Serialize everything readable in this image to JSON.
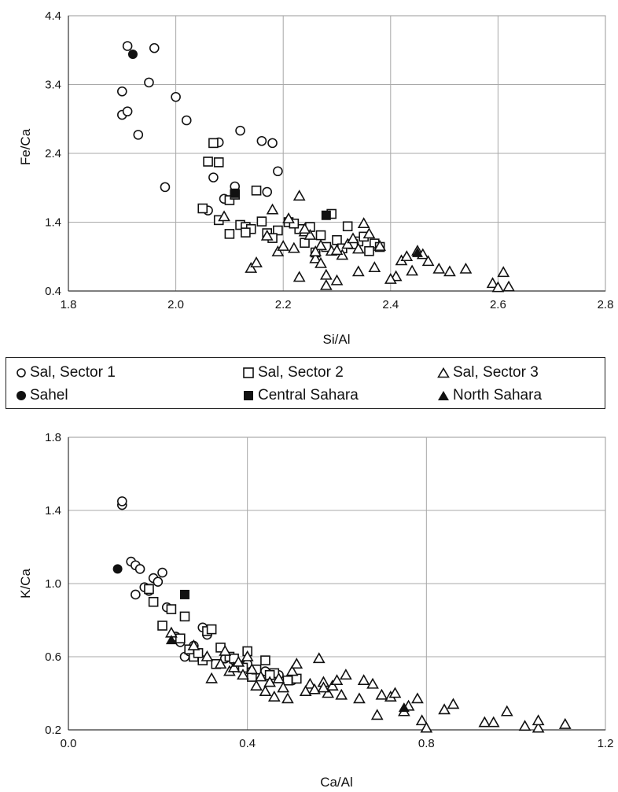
{
  "legend": [
    {
      "label": "Sal, Sector 1",
      "marker": "circle-open"
    },
    {
      "label": "Sal, Sector 2",
      "marker": "square-open"
    },
    {
      "label": "Sal, Sector 3",
      "marker": "triangle-open"
    },
    {
      "label": "Sahel",
      "marker": "circle-filled"
    },
    {
      "label": "Central Sahara",
      "marker": "square-filled"
    },
    {
      "label": "North Sahara",
      "marker": "triangle-filled"
    }
  ],
  "chart_data": [
    {
      "type": "scatter",
      "title": "",
      "xlabel": "Si/Al",
      "ylabel": "Fe/Ca",
      "xlim": [
        1.8,
        2.8
      ],
      "ylim": [
        0.4,
        4.4
      ],
      "xticks": [
        "1.8",
        "2.0",
        "2.2",
        "2.4",
        "2.6",
        "2.8"
      ],
      "yticks": [
        "0.4",
        "1.4",
        "2.4",
        "3.4",
        "4.4"
      ],
      "grid": true,
      "series": [
        {
          "name": "Sal, Sector 1",
          "marker": "circle-open",
          "x": [
            1.91,
            1.96,
            1.9,
            1.95,
            1.9,
            1.91,
            1.93,
            2.0,
            2.02,
            2.08,
            2.12,
            2.16,
            2.18,
            2.19,
            1.98,
            2.07,
            2.11,
            2.09,
            2.06,
            2.17
          ],
          "y": [
            3.96,
            3.93,
            3.3,
            3.43,
            2.96,
            3.01,
            2.67,
            3.22,
            2.88,
            2.56,
            2.73,
            2.58,
            2.55,
            2.14,
            1.91,
            2.05,
            1.92,
            1.74,
            1.57,
            1.84
          ]
        },
        {
          "name": "Sal, Sector 2",
          "marker": "square-open",
          "x": [
            2.06,
            2.08,
            2.05,
            2.07,
            2.1,
            2.11,
            2.12,
            2.13,
            2.14,
            2.15,
            2.16,
            2.17,
            2.19,
            2.21,
            2.23,
            2.25,
            2.27,
            2.29,
            2.3,
            2.32,
            2.34,
            2.35,
            2.37,
            2.38,
            2.1,
            2.13,
            2.18,
            2.24,
            2.28,
            2.33,
            2.36,
            2.08,
            2.22,
            2.26,
            2.31
          ],
          "y": [
            2.28,
            2.27,
            1.6,
            2.55,
            1.72,
            1.8,
            1.36,
            1.33,
            1.3,
            1.86,
            1.41,
            1.24,
            1.28,
            1.4,
            1.3,
            1.33,
            1.21,
            1.52,
            1.14,
            1.34,
            1.12,
            1.19,
            1.09,
            1.04,
            1.23,
            1.25,
            1.17,
            1.1,
            1.04,
            1.08,
            0.98,
            1.43,
            1.38,
            0.96,
            1.02
          ]
        },
        {
          "name": "Sal, Sector 3",
          "marker": "triangle-open",
          "x": [
            2.09,
            2.14,
            2.15,
            2.17,
            2.18,
            2.19,
            2.2,
            2.21,
            2.22,
            2.23,
            2.24,
            2.25,
            2.26,
            2.27,
            2.28,
            2.29,
            2.3,
            2.31,
            2.32,
            2.33,
            2.34,
            2.35,
            2.36,
            2.37,
            2.38,
            2.41,
            2.42,
            2.43,
            2.44,
            2.45,
            2.46,
            2.47,
            2.49,
            2.51,
            2.54,
            2.59,
            2.6,
            2.61,
            2.62,
            2.23,
            2.26,
            2.28,
            2.3,
            2.34,
            2.4,
            2.27,
            2.24
          ],
          "y": [
            1.48,
            0.73,
            0.81,
            1.2,
            1.58,
            0.97,
            1.05,
            1.45,
            1.02,
            1.78,
            1.26,
            1.21,
            0.87,
            1.06,
            0.63,
            0.98,
            0.55,
            0.92,
            1.08,
            1.16,
            0.68,
            1.38,
            1.23,
            0.74,
            1.05,
            0.61,
            0.84,
            0.9,
            0.69,
            0.98,
            0.93,
            0.83,
            0.72,
            0.68,
            0.72,
            0.51,
            0.45,
            0.67,
            0.46,
            0.6,
            0.97,
            0.48,
            0.99,
            1.01,
            0.57,
            0.8,
            1.3
          ]
        },
        {
          "name": "Sahel",
          "marker": "circle-filled",
          "x": [
            1.92
          ],
          "y": [
            3.84
          ]
        },
        {
          "name": "Central Sahara",
          "marker": "square-filled",
          "x": [
            2.11,
            2.28
          ],
          "y": [
            1.82,
            1.5
          ]
        },
        {
          "name": "North Sahara",
          "marker": "triangle-filled",
          "x": [
            2.45
          ],
          "y": [
            0.95
          ]
        }
      ]
    },
    {
      "type": "scatter",
      "title": "",
      "xlabel": "Ca/Al",
      "ylabel": "K/Ca",
      "xlim": [
        0.0,
        1.2
      ],
      "ylim": [
        0.2,
        1.8
      ],
      "xticks": [
        "0.0",
        "0.4",
        "0.8",
        "1.2"
      ],
      "yticks": [
        "0.2",
        "0.6",
        "1.0",
        "1.4",
        "1.8"
      ],
      "grid": true,
      "series": [
        {
          "name": "Sal, Sector 1",
          "marker": "circle-open",
          "x": [
            0.12,
            0.12,
            0.14,
            0.15,
            0.16,
            0.17,
            0.18,
            0.19,
            0.2,
            0.21,
            0.15,
            0.22,
            0.25,
            0.26,
            0.28,
            0.3,
            0.31,
            0.27,
            0.24,
            0.35,
            0.37,
            0.4,
            0.44,
            0.47,
            0.5
          ],
          "y": [
            1.43,
            1.45,
            1.12,
            1.1,
            1.08,
            0.98,
            0.96,
            1.03,
            1.01,
            1.06,
            0.94,
            0.87,
            0.68,
            0.6,
            0.66,
            0.76,
            0.72,
            0.63,
            0.71,
            0.59,
            0.58,
            0.56,
            0.52,
            0.5,
            0.47
          ]
        },
        {
          "name": "Sal, Sector 2",
          "marker": "square-open",
          "x": [
            0.18,
            0.19,
            0.21,
            0.23,
            0.25,
            0.26,
            0.28,
            0.3,
            0.31,
            0.32,
            0.34,
            0.36,
            0.38,
            0.4,
            0.41,
            0.42,
            0.44,
            0.46,
            0.49,
            0.51,
            0.29,
            0.33,
            0.37,
            0.39,
            0.45,
            0.27
          ],
          "y": [
            0.97,
            0.9,
            0.77,
            0.86,
            0.7,
            0.82,
            0.6,
            0.58,
            0.74,
            0.75,
            0.65,
            0.6,
            0.55,
            0.63,
            0.49,
            0.53,
            0.58,
            0.51,
            0.47,
            0.48,
            0.62,
            0.56,
            0.59,
            0.54,
            0.5,
            0.64
          ]
        },
        {
          "name": "Sal, Sector 3",
          "marker": "triangle-open",
          "x": [
            0.23,
            0.28,
            0.31,
            0.32,
            0.34,
            0.35,
            0.36,
            0.37,
            0.38,
            0.39,
            0.4,
            0.41,
            0.42,
            0.43,
            0.44,
            0.45,
            0.46,
            0.47,
            0.48,
            0.49,
            0.5,
            0.51,
            0.54,
            0.55,
            0.56,
            0.57,
            0.58,
            0.59,
            0.6,
            0.61,
            0.62,
            0.65,
            0.68,
            0.69,
            0.72,
            0.73,
            0.75,
            0.76,
            0.78,
            0.79,
            0.8,
            0.84,
            0.86,
            0.93,
            0.95,
            0.98,
            1.02,
            1.05,
            1.05,
            1.11,
            0.7,
            0.66,
            0.53,
            0.57
          ],
          "y": [
            0.73,
            0.66,
            0.6,
            0.48,
            0.56,
            0.63,
            0.52,
            0.54,
            0.57,
            0.5,
            0.6,
            0.53,
            0.44,
            0.49,
            0.41,
            0.46,
            0.38,
            0.48,
            0.43,
            0.37,
            0.52,
            0.56,
            0.45,
            0.42,
            0.59,
            0.46,
            0.4,
            0.44,
            0.47,
            0.39,
            0.5,
            0.37,
            0.45,
            0.28,
            0.38,
            0.4,
            0.3,
            0.33,
            0.37,
            0.25,
            0.21,
            0.31,
            0.34,
            0.24,
            0.24,
            0.3,
            0.22,
            0.21,
            0.25,
            0.23,
            0.39,
            0.47,
            0.41,
            0.43
          ]
        },
        {
          "name": "Sahel",
          "marker": "circle-filled",
          "x": [
            0.11
          ],
          "y": [
            1.08
          ]
        },
        {
          "name": "Central Sahara",
          "marker": "square-filled",
          "x": [
            0.26
          ],
          "y": [
            0.94
          ]
        },
        {
          "name": "North Sahara",
          "marker": "triangle-filled",
          "x": [
            0.23,
            0.75
          ],
          "y": [
            0.69,
            0.32
          ]
        }
      ]
    }
  ]
}
